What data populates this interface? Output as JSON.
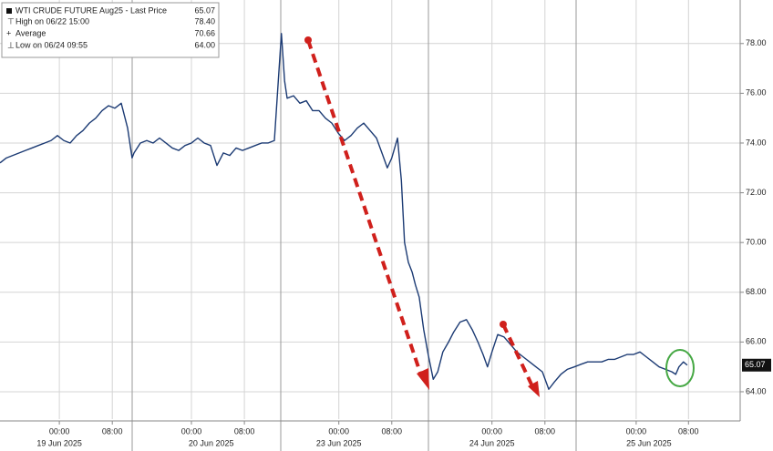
{
  "chart_data": {
    "type": "line",
    "series": [
      {
        "name": "WTI CRUDE FUTURE Aug25 - Last Price",
        "color": "#1b3a73",
        "values": [
          73.2,
          73.4,
          73.5,
          73.6,
          73.7,
          73.8,
          73.9,
          74.0,
          74.1,
          74.3,
          74.1,
          74.0,
          74.3,
          74.5,
          74.8,
          75.0,
          75.3,
          75.5,
          75.4,
          75.6,
          74.6,
          73.4,
          73.6,
          74.0,
          74.1,
          74.0,
          74.2,
          74.0,
          73.8,
          73.7,
          73.9,
          74.0,
          74.2,
          74.0,
          73.9,
          73.1,
          73.6,
          73.5,
          73.8,
          73.7,
          73.8,
          73.9,
          74.0,
          74.0,
          74.1,
          78.4,
          76.5,
          75.8,
          75.9,
          75.6,
          75.7,
          75.3,
          75.3,
          75.0,
          74.8,
          74.4,
          74.1,
          74.3,
          74.6,
          74.8,
          74.5,
          74.2,
          73.5,
          73.0,
          73.4,
          74.2,
          72.5,
          70.0,
          69.2,
          68.8,
          68.3,
          67.8,
          66.5,
          65.5,
          64.5,
          64.8,
          65.6,
          66.0,
          66.4,
          66.8,
          66.9,
          66.5,
          66.0,
          65.5,
          65.0,
          65.6,
          66.3,
          66.2,
          65.9,
          65.6,
          65.4,
          65.2,
          65.0,
          64.8,
          64.1,
          64.4,
          64.7,
          64.9,
          65.0,
          65.1,
          65.2,
          65.2,
          65.2,
          65.3,
          65.3,
          65.4,
          65.5,
          65.5,
          65.6,
          65.4,
          65.2,
          65.0,
          64.9,
          64.8,
          64.7,
          65.0,
          65.2,
          65.07
        ]
      }
    ],
    "x": [
      0,
      1,
      2,
      3,
      4,
      5,
      6,
      7,
      8,
      9,
      10,
      11,
      12,
      13,
      14,
      15,
      16,
      17,
      18,
      19,
      20,
      20.7,
      21,
      22,
      23,
      24,
      25,
      26,
      27,
      28,
      29,
      30,
      31,
      32,
      33,
      34,
      35,
      36,
      37,
      38,
      39,
      40,
      41,
      42,
      43,
      44.1,
      44.6,
      45,
      46,
      47,
      48,
      49,
      50,
      51,
      52,
      53,
      54,
      55,
      56,
      57,
      58,
      59,
      60,
      60.7,
      61.4,
      62.3,
      62.9,
      63.4,
      64,
      64.6,
      65.1,
      65.7,
      66.4,
      67.1,
      67.9,
      68.6,
      69.4,
      70.3,
      71.1,
      72.1,
      73.1,
      74,
      74.9,
      75.7,
      76.4,
      77.1,
      78,
      79,
      80,
      81,
      82,
      83,
      84,
      85,
      86,
      86.9,
      87.9,
      88.9,
      90,
      91,
      92.1,
      93.1,
      94.3,
      95.3,
      96.3,
      97.3,
      98.3,
      99.3,
      100.3,
      101.3,
      102.3,
      103.3,
      104.3,
      105.3,
      105.9,
      106.4,
      107.1,
      107.7
    ],
    "xlim": [
      0,
      116
    ],
    "xticks": [
      {
        "value": 9.3,
        "label": "00:00"
      },
      {
        "value": 17.6,
        "label": "08:00"
      },
      {
        "value": 30,
        "label": "00:00"
      },
      {
        "value": 38.3,
        "label": "08:00"
      },
      {
        "value": 53.1,
        "label": "00:00"
      },
      {
        "value": 61.4,
        "label": "08:00"
      },
      {
        "value": 77.1,
        "label": "00:00"
      },
      {
        "value": 85.4,
        "label": "08:00"
      },
      {
        "value": 99.7,
        "label": "00:00"
      },
      {
        "value": 107.9,
        "label": "08:00"
      }
    ],
    "day_labels": [
      {
        "value": 9.3,
        "label": "19 Jun 2025"
      },
      {
        "value": 33.1,
        "label": "20 Jun 2025"
      },
      {
        "value": 53.1,
        "label": "23 Jun 2025"
      },
      {
        "value": 77.1,
        "label": "24 Jun 2025"
      },
      {
        "value": 101.7,
        "label": "25 Jun 2025"
      }
    ],
    "ylim": [
      62.9,
      79.75
    ],
    "yticks": [
      {
        "value": 64,
        "label": "64.00"
      },
      {
        "value": 66,
        "label": "66.00"
      },
      {
        "value": 68,
        "label": "68.00"
      },
      {
        "value": 70,
        "label": "70.00"
      },
      {
        "value": 72,
        "label": "72.00"
      },
      {
        "value": 74,
        "label": "74.00"
      },
      {
        "value": 76,
        "label": "76.00"
      },
      {
        "value": 78,
        "label": "78.00"
      }
    ],
    "grid": true,
    "last_price": 65.07,
    "stats": [
      {
        "label": "High on 06/22 15:00",
        "value": 78.4,
        "value_label": "78.40"
      },
      {
        "label": "Average",
        "value": 70.66
      },
      {
        "label": "Low on 06/24 09:55",
        "value": 64,
        "value_label": "64.00"
      }
    ]
  }
}
